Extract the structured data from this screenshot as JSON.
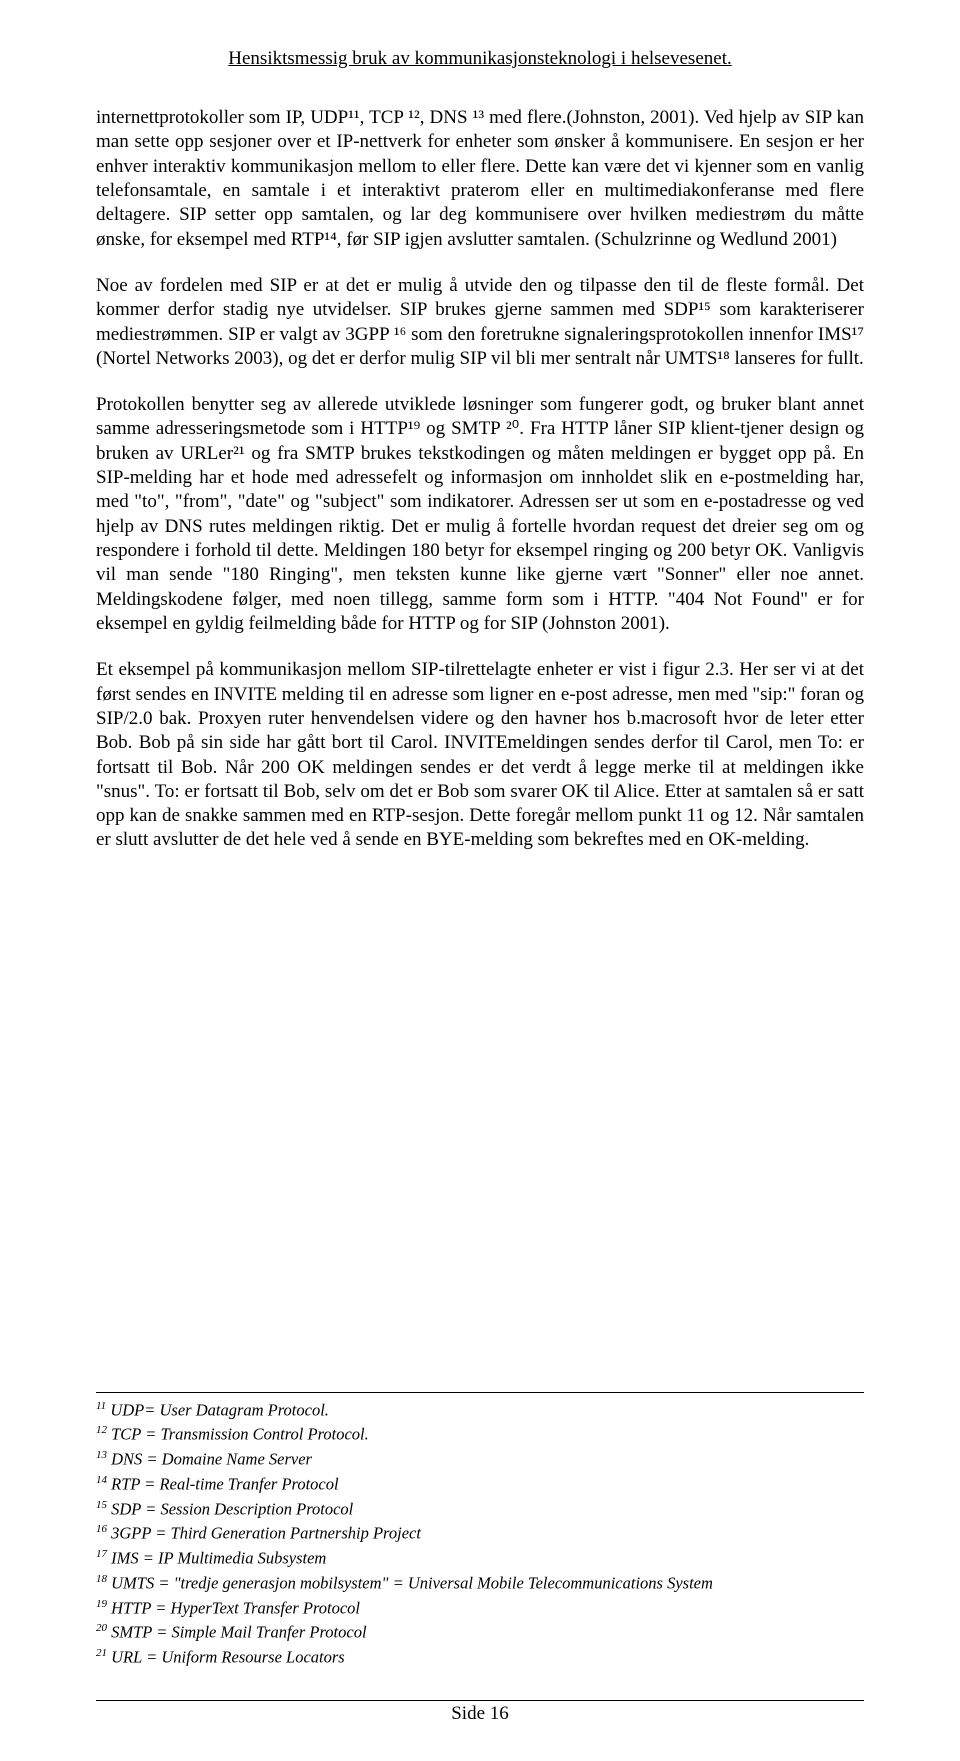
{
  "header": {
    "title": "Hensiktsmessig bruk av kommunikasjonsteknologi i helsevesenet."
  },
  "paragraphs": {
    "p1": "internettprotokoller som IP, UDP¹¹, TCP ¹², DNS ¹³ med flere.(Johnston, 2001). Ved hjelp av SIP kan man sette opp sesjoner over et IP-nettverk for enheter som ønsker å kommunisere. En sesjon er her enhver interaktiv kommunikasjon mellom to eller flere. Dette kan være det vi kjenner som en vanlig telefonsamtale, en samtale i et interaktivt praterom eller en multimediakonferanse med flere deltagere. SIP setter opp samtalen, og lar deg kommunisere over hvilken mediestrøm du måtte ønske, for eksempel med RTP¹⁴, før SIP igjen avslutter samtalen. (Schulzrinne og Wedlund 2001)",
    "p2": "Noe av fordelen med SIP er at det er mulig å utvide den og tilpasse den til de fleste formål. Det kommer derfor stadig nye utvidelser. SIP brukes gjerne sammen med SDP¹⁵ som karakteriserer mediestrømmen. SIP er valgt av 3GPP              ¹⁶  som den foretrukne signaleringsprotokollen innenfor IMS¹⁷ (Nortel Networks 2003), og det er derfor mulig SIP vil bli mer sentralt når UMTS¹⁸ lanseres for fullt.",
    "p3": "Protokollen benytter seg av allerede utviklede løsninger som fungerer godt, og bruker blant annet samme adresseringsmetode som i HTTP¹⁹ og SMTP ²⁰. Fra HTTP låner SIP klient-tjener design og bruken av URLer²¹ og fra SMTP brukes tekstkodingen og måten meldingen er bygget opp på. En SIP-melding har et hode med adressefelt og informasjon om innholdet slik en e-postmelding har, med \"to\", \"from\", \"date\" og \"subject\" som indikatorer. Adressen ser ut som en e-postadresse og ved hjelp av DNS rutes meldingen riktig. Det er mulig å fortelle hvordan request det dreier seg om og respondere i forhold til dette. Meldingen 180 betyr for eksempel ringing og 200 betyr OK. Vanligvis vil man sende \"180 Ringing\", men teksten kunne like gjerne vært \"Sonner\" eller noe annet. Meldingskodene følger, med noen tillegg, samme form som i HTTP. \"404 Not Found\" er for eksempel en gyldig feilmelding både for HTTP og for SIP (Johnston 2001).",
    "p4": "Et eksempel på kommunikasjon mellom SIP-tilrettelagte enheter er vist i figur 2.3. Her ser vi at det først sendes en INVITE melding til en adresse som ligner en e-post adresse, men med \"sip:\" foran og SIP/2.0 bak. Proxyen ruter henvendelsen videre og den havner hos b.macrosoft hvor de leter etter Bob. Bob på sin side har gått bort til Carol. INVITEmeldingen sendes derfor til Carol, men To: er fortsatt til Bob. Når 200 OK meldingen sendes er det verdt å legge merke til at meldingen ikke \"snus\". To: er fortsatt til Bob, selv om det er Bob som svarer OK til Alice. Etter at samtalen så er satt opp kan de snakke sammen med en RTP-sesjon. Dette foregår mellom punkt 11 og 12. Når samtalen er slutt avslutter de det hele ved å sende en BYE-melding som bekreftes med en OK-melding."
  },
  "footnotes": {
    "f11": {
      "num": "11",
      "text": " UDP= User Datagram Protocol."
    },
    "f12": {
      "num": "12",
      "text": " TCP = Transmission Control Protocol."
    },
    "f13": {
      "num": "13",
      "text": " DNS = Domaine Name Server"
    },
    "f14": {
      "num": "14",
      "text": " RTP = Real-time Tranfer Protocol"
    },
    "f15": {
      "num": "15",
      "text": " SDP = Session Description Protocol"
    },
    "f16": {
      "num": "16",
      "text": " 3GPP = Third Generation Partnership Project"
    },
    "f17": {
      "num": "17",
      "text": " IMS = IP Multimedia Subsystem"
    },
    "f18": {
      "num": "18",
      "text": " UMTS = \"tredje generasjon mobilsystem\" = Universal Mobile Telecommunications System"
    },
    "f19": {
      "num": "19",
      "text": " HTTP = HyperText Transfer Protocol"
    },
    "f20": {
      "num": "20",
      "text": " SMTP = Simple Mail Tranfer Protocol"
    },
    "f21": {
      "num": "21",
      "text": " URL = Uniform Resourse Locators"
    }
  },
  "footer": {
    "page_label": "Side 16"
  }
}
